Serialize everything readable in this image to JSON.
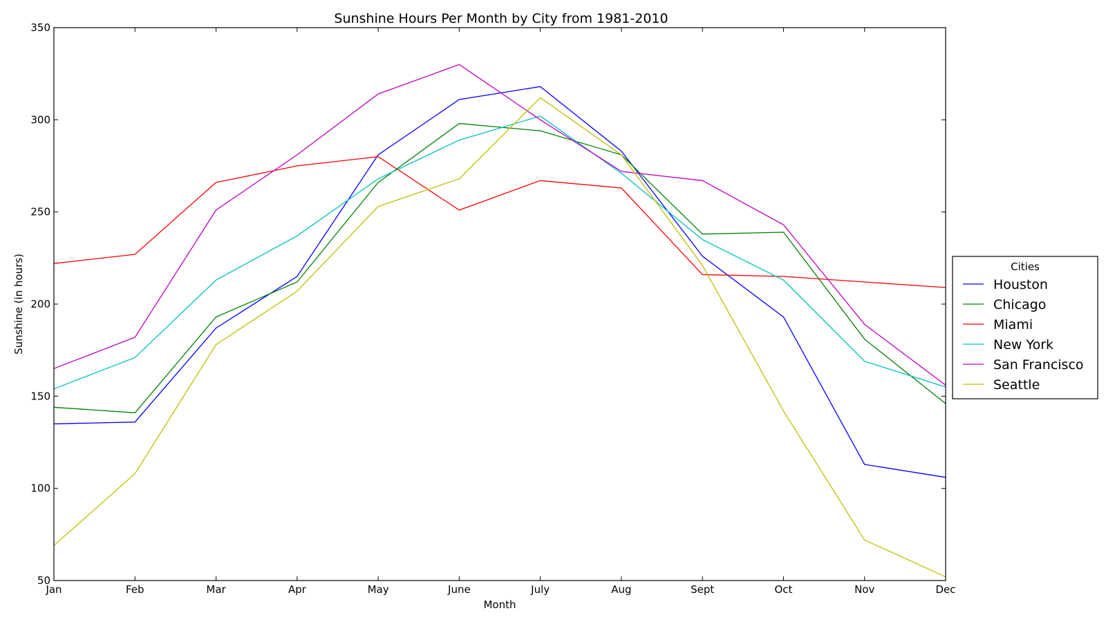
{
  "chart_data": {
    "type": "line",
    "title": "Sunshine Hours Per Month by City from 1981-2010",
    "xlabel": "Month",
    "ylabel": "Sunshine (in hours)",
    "categories": [
      "Jan",
      "Feb",
      "Mar",
      "Apr",
      "May",
      "June",
      "July",
      "Aug",
      "Sept",
      "Oct",
      "Nov",
      "Dec"
    ],
    "ylim": [
      50,
      350
    ],
    "yticks": [
      50,
      100,
      150,
      200,
      250,
      300,
      350
    ],
    "grid": false,
    "legend": {
      "title": "Cities",
      "placement": "right-outside"
    },
    "series": [
      {
        "name": "Houston",
        "color": "#0000ff",
        "values": [
          135,
          136,
          187,
          215,
          281,
          311,
          318,
          283,
          226,
          193,
          113,
          106
        ]
      },
      {
        "name": "Chicago",
        "color": "#008000",
        "values": [
          144,
          141,
          193,
          212,
          266,
          298,
          294,
          281,
          238,
          239,
          181,
          146
        ]
      },
      {
        "name": "Miami",
        "color": "#ff0000",
        "values": [
          222,
          227,
          266,
          275,
          280,
          251,
          267,
          263,
          216,
          215,
          212,
          209
        ]
      },
      {
        "name": "New York",
        "color": "#00bfbf",
        "values": [
          154,
          171,
          213,
          237,
          268,
          289,
          302,
          271,
          235,
          213,
          169,
          155
        ]
      },
      {
        "name": "San Francisco",
        "color": "#bf00bf",
        "values": [
          165,
          182,
          251,
          281,
          314,
          330,
          300,
          272,
          267,
          243,
          189,
          156
        ]
      },
      {
        "name": "Seattle",
        "color": "#bfbf00",
        "values": [
          69,
          108,
          178,
          207,
          253,
          268,
          312,
          281,
          221,
          142,
          72,
          52
        ]
      }
    ]
  }
}
